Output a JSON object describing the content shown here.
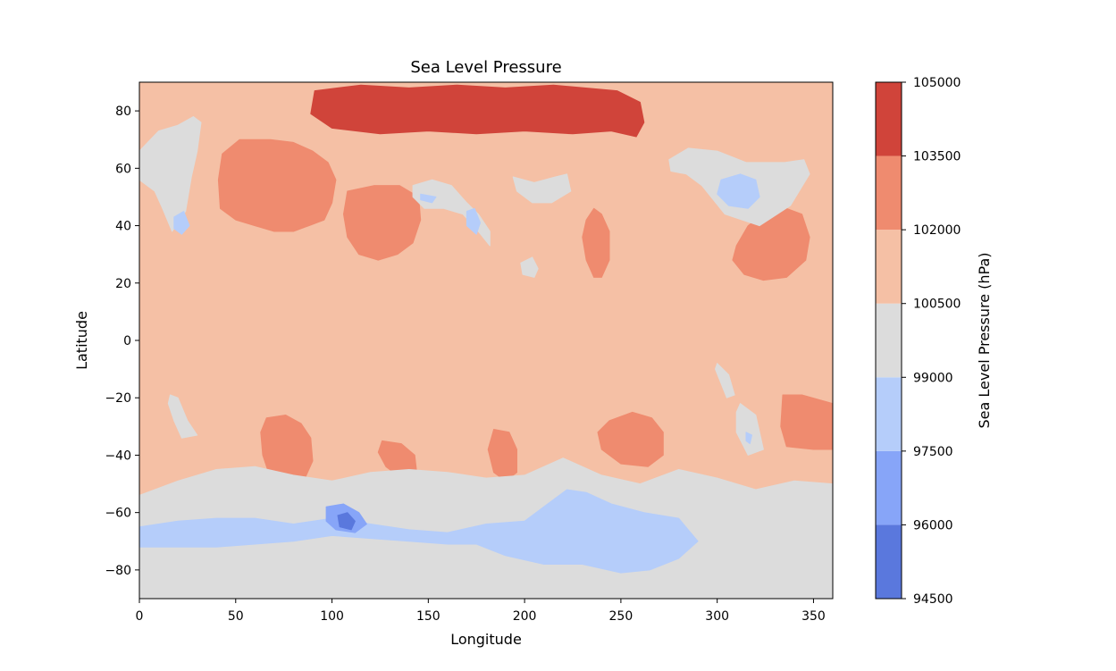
{
  "chart_data": {
    "type": "heatmap",
    "subtype": "filled-contour-map",
    "title": "Sea Level Pressure",
    "xlabel": "Longitude",
    "ylabel": "Latitude",
    "xlim": [
      0,
      360
    ],
    "ylim": [
      -90,
      90
    ],
    "xticks": [
      0,
      50,
      100,
      150,
      200,
      250,
      300,
      350
    ],
    "yticks": [
      -80,
      -60,
      -40,
      -20,
      0,
      20,
      40,
      60,
      80
    ],
    "colorbar": {
      "label": "Sea Level Pressure (hPa)",
      "ticks": [
        94500,
        96000,
        97500,
        99000,
        100500,
        102000,
        103500,
        105000
      ],
      "levels": [
        {
          "min": 94500,
          "max": 96000,
          "color": "#5a78dd"
        },
        {
          "min": 96000,
          "max": 97500,
          "color": "#87a5f8"
        },
        {
          "min": 97500,
          "max": 99000,
          "color": "#b5cdfa"
        },
        {
          "min": 99000,
          "max": 100500,
          "color": "#dcdcdc"
        },
        {
          "min": 100500,
          "max": 102000,
          "color": "#f5c0a5"
        },
        {
          "min": 102000,
          "max": 103500,
          "color": "#ef8b6f"
        },
        {
          "min": 103500,
          "max": 105000,
          "color": "#d0443a"
        }
      ]
    },
    "regions": [
      {
        "level": 6,
        "desc": "arctic high",
        "points": [
          [
            91,
            87
          ],
          [
            115,
            89
          ],
          [
            140,
            88
          ],
          [
            165,
            89
          ],
          [
            190,
            88
          ],
          [
            215,
            89
          ],
          [
            248,
            87
          ],
          [
            260,
            83
          ],
          [
            262,
            76
          ],
          [
            258,
            71
          ],
          [
            245,
            73
          ],
          [
            225,
            72
          ],
          [
            200,
            73
          ],
          [
            175,
            72
          ],
          [
            150,
            73
          ],
          [
            125,
            72
          ],
          [
            100,
            74
          ],
          [
            89,
            79
          ]
        ]
      },
      {
        "level": 5,
        "desc": "siberian high",
        "points": [
          [
            43,
            65
          ],
          [
            52,
            70
          ],
          [
            68,
            70
          ],
          [
            80,
            69
          ],
          [
            90,
            66
          ],
          [
            98,
            62
          ],
          [
            102,
            56
          ],
          [
            100,
            48
          ],
          [
            96,
            42
          ],
          [
            88,
            40
          ],
          [
            80,
            38
          ],
          [
            70,
            38
          ],
          [
            60,
            40
          ],
          [
            50,
            42
          ],
          [
            42,
            46
          ],
          [
            41,
            56
          ]
        ]
      },
      {
        "level": 5,
        "desc": "central asia high",
        "points": [
          [
            108,
            52
          ],
          [
            122,
            54
          ],
          [
            135,
            54
          ],
          [
            145,
            50
          ],
          [
            146,
            42
          ],
          [
            142,
            34
          ],
          [
            134,
            30
          ],
          [
            124,
            28
          ],
          [
            114,
            30
          ],
          [
            108,
            36
          ],
          [
            106,
            44
          ]
        ]
      },
      {
        "level": 5,
        "desc": "west pacific high",
        "points": [
          [
            310,
            33
          ],
          [
            316,
            40
          ],
          [
            326,
            45
          ],
          [
            336,
            46
          ],
          [
            344,
            44
          ],
          [
            348,
            36
          ],
          [
            346,
            28
          ],
          [
            336,
            22
          ],
          [
            324,
            21
          ],
          [
            314,
            23
          ],
          [
            308,
            28
          ]
        ]
      },
      {
        "level": 5,
        "desc": "north atlantic high",
        "points": [
          [
            232,
            42
          ],
          [
            236,
            46
          ],
          [
            240,
            44
          ],
          [
            244,
            38
          ],
          [
            244,
            28
          ],
          [
            240,
            22
          ],
          [
            236,
            22
          ],
          [
            232,
            28
          ],
          [
            230,
            36
          ]
        ]
      },
      {
        "level": 5,
        "desc": "south atlantic high",
        "points": [
          [
            66,
            -27
          ],
          [
            76,
            -26
          ],
          [
            84,
            -29
          ],
          [
            89,
            -34
          ],
          [
            90,
            -42
          ],
          [
            86,
            -48
          ],
          [
            76,
            -50
          ],
          [
            68,
            -48
          ],
          [
            64,
            -40
          ],
          [
            63,
            -32
          ]
        ]
      },
      {
        "level": 5,
        "desc": "south indian high",
        "points": [
          [
            126,
            -35
          ],
          [
            136,
            -36
          ],
          [
            143,
            -40
          ],
          [
            144,
            -46
          ],
          [
            136,
            -48
          ],
          [
            128,
            -44
          ],
          [
            124,
            -39
          ]
        ]
      },
      {
        "level": 5,
        "desc": "south pacific high",
        "points": [
          [
            184,
            -31
          ],
          [
            192,
            -32
          ],
          [
            196,
            -38
          ],
          [
            196,
            -46
          ],
          [
            190,
            -49
          ],
          [
            184,
            -46
          ],
          [
            181,
            -38
          ]
        ]
      },
      {
        "level": 5,
        "desc": "south east pacific high",
        "points": [
          [
            244,
            -28
          ],
          [
            256,
            -25
          ],
          [
            266,
            -27
          ],
          [
            272,
            -32
          ],
          [
            272,
            -40
          ],
          [
            264,
            -44
          ],
          [
            250,
            -43
          ],
          [
            240,
            -38
          ],
          [
            238,
            -32
          ]
        ]
      },
      {
        "level": 5,
        "desc": "australia high",
        "points": [
          [
            334,
            -19
          ],
          [
            344,
            -19
          ],
          [
            360,
            -22
          ],
          [
            360,
            -38
          ],
          [
            350,
            -38
          ],
          [
            336,
            -37
          ],
          [
            333,
            -30
          ]
        ]
      },
      {
        "level": 3,
        "desc": "southern ocean trough",
        "points": [
          [
            0,
            -54
          ],
          [
            20,
            -49
          ],
          [
            40,
            -45
          ],
          [
            60,
            -44
          ],
          [
            80,
            -47
          ],
          [
            100,
            -49
          ],
          [
            120,
            -46
          ],
          [
            140,
            -45
          ],
          [
            160,
            -46
          ],
          [
            180,
            -48
          ],
          [
            200,
            -47
          ],
          [
            220,
            -41
          ],
          [
            240,
            -47
          ],
          [
            260,
            -50
          ],
          [
            280,
            -45
          ],
          [
            300,
            -48
          ],
          [
            320,
            -52
          ],
          [
            340,
            -49
          ],
          [
            360,
            -50
          ],
          [
            360,
            -90
          ],
          [
            0,
            -90
          ]
        ]
      },
      {
        "level": 2,
        "desc": "antarctic low band",
        "points": [
          [
            0,
            -65
          ],
          [
            20,
            -63
          ],
          [
            40,
            -62
          ],
          [
            60,
            -62
          ],
          [
            80,
            -64
          ],
          [
            100,
            -62
          ],
          [
            120,
            -64
          ],
          [
            140,
            -66
          ],
          [
            160,
            -67
          ],
          [
            180,
            -64
          ],
          [
            200,
            -63
          ],
          [
            210,
            -58
          ],
          [
            222,
            -52
          ],
          [
            232,
            -53
          ],
          [
            245,
            -57
          ],
          [
            262,
            -60
          ],
          [
            280,
            -62
          ],
          [
            290,
            -70
          ],
          [
            280,
            -76
          ],
          [
            265,
            -80
          ],
          [
            250,
            -81
          ],
          [
            230,
            -78
          ],
          [
            210,
            -78
          ],
          [
            190,
            -75
          ],
          [
            175,
            -71
          ],
          [
            160,
            -71
          ],
          [
            140,
            -70
          ],
          [
            120,
            -69
          ],
          [
            100,
            -68
          ],
          [
            80,
            -70
          ],
          [
            60,
            -71
          ],
          [
            40,
            -72
          ],
          [
            20,
            -72
          ],
          [
            0,
            -72
          ]
        ]
      },
      {
        "level": 1,
        "desc": "southern low",
        "points": [
          [
            97,
            -58
          ],
          [
            106,
            -57
          ],
          [
            114,
            -60
          ],
          [
            118,
            -64
          ],
          [
            112,
            -67
          ],
          [
            102,
            -66
          ],
          [
            97,
            -63
          ]
        ]
      },
      {
        "level": 0,
        "desc": "southern low core",
        "points": [
          [
            103,
            -61
          ],
          [
            108,
            -60
          ],
          [
            112,
            -63
          ],
          [
            110,
            -66
          ],
          [
            104,
            -65
          ]
        ]
      },
      {
        "level": 3,
        "desc": "greenland trough",
        "points": [
          [
            0,
            66
          ],
          [
            10,
            73
          ],
          [
            20,
            75
          ],
          [
            28,
            78
          ],
          [
            32,
            76
          ],
          [
            30,
            66
          ],
          [
            27,
            57
          ],
          [
            24,
            45
          ],
          [
            17,
            38
          ],
          [
            12,
            46
          ],
          [
            8,
            52
          ],
          [
            0,
            56
          ]
        ]
      },
      {
        "level": 2,
        "desc": "greenland low",
        "points": [
          [
            18,
            43
          ],
          [
            23,
            45
          ],
          [
            26,
            40
          ],
          [
            22,
            37
          ],
          [
            18,
            39
          ]
        ]
      },
      {
        "level": 3,
        "desc": "aleutian trough",
        "points": [
          [
            275,
            63
          ],
          [
            285,
            67
          ],
          [
            300,
            66
          ],
          [
            315,
            62
          ],
          [
            335,
            62
          ],
          [
            345,
            63
          ],
          [
            348,
            58
          ],
          [
            338,
            47
          ],
          [
            322,
            40
          ],
          [
            304,
            44
          ],
          [
            292,
            54
          ],
          [
            284,
            58
          ],
          [
            276,
            59
          ]
        ]
      },
      {
        "level": 2,
        "desc": "aleutian low",
        "points": [
          [
            302,
            56
          ],
          [
            312,
            58
          ],
          [
            320,
            56
          ],
          [
            322,
            50
          ],
          [
            316,
            46
          ],
          [
            306,
            47
          ],
          [
            300,
            51
          ]
        ]
      },
      {
        "level": 3,
        "desc": "pacific trough",
        "points": [
          [
            142,
            54
          ],
          [
            152,
            56
          ],
          [
            162,
            54
          ],
          [
            170,
            48
          ],
          [
            176,
            44
          ],
          [
            182,
            38
          ],
          [
            182,
            33
          ],
          [
            176,
            38
          ],
          [
            168,
            44
          ],
          [
            158,
            46
          ],
          [
            148,
            46
          ],
          [
            142,
            50
          ]
        ]
      },
      {
        "level": 2,
        "desc": "pacific low",
        "points": [
          [
            146,
            51
          ],
          [
            154,
            50
          ],
          [
            152,
            48
          ],
          [
            146,
            49
          ]
        ]
      },
      {
        "level": 2,
        "desc": "pacific low 2",
        "points": [
          [
            170,
            45
          ],
          [
            174,
            46
          ],
          [
            177,
            41
          ],
          [
            175,
            37
          ],
          [
            170,
            40
          ]
        ]
      },
      {
        "level": 3,
        "desc": "north trough",
        "points": [
          [
            194,
            57
          ],
          [
            205,
            55
          ],
          [
            216,
            57
          ],
          [
            222,
            58
          ],
          [
            224,
            52
          ],
          [
            214,
            48
          ],
          [
            204,
            48
          ],
          [
            196,
            52
          ]
        ]
      },
      {
        "level": 3,
        "desc": "small trough",
        "points": [
          [
            198,
            27
          ],
          [
            204,
            29
          ],
          [
            207,
            25
          ],
          [
            205,
            22
          ],
          [
            199,
            23
          ]
        ]
      },
      {
        "level": 3,
        "desc": "south atlantic trough",
        "points": [
          [
            16,
            -19
          ],
          [
            20,
            -20
          ],
          [
            25,
            -28
          ],
          [
            30,
            -33
          ],
          [
            22,
            -34
          ],
          [
            18,
            -28
          ],
          [
            15,
            -22
          ]
        ]
      },
      {
        "level": 3,
        "desc": "coastal trough",
        "points": [
          [
            300,
            -8
          ],
          [
            306,
            -12
          ],
          [
            309,
            -19
          ],
          [
            305,
            -20
          ],
          [
            302,
            -15
          ],
          [
            299,
            -10
          ]
        ]
      },
      {
        "level": 3,
        "desc": "tasman trough",
        "points": [
          [
            312,
            -22
          ],
          [
            320,
            -26
          ],
          [
            324,
            -38
          ],
          [
            316,
            -40
          ],
          [
            310,
            -32
          ],
          [
            310,
            -25
          ]
        ]
      },
      {
        "level": 2,
        "desc": "tasman low",
        "points": [
          [
            315,
            -32
          ],
          [
            318,
            -33
          ],
          [
            317,
            -36
          ],
          [
            315,
            -35
          ]
        ]
      }
    ]
  }
}
